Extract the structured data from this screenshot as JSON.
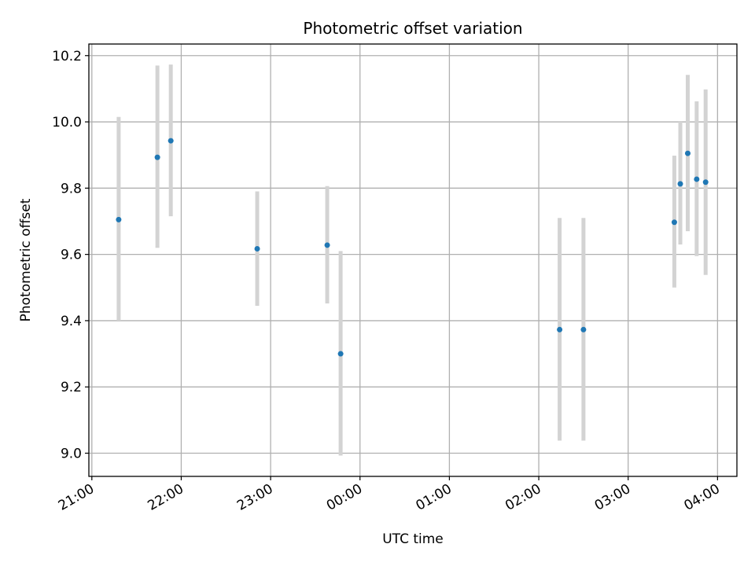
{
  "chart_data": {
    "type": "scatter",
    "title": "Photometric offset variation",
    "xlabel": "UTC time",
    "ylabel": "Photometric offset",
    "grid": true,
    "x_axis": "time",
    "xlim": [
      "20:58",
      "04:13"
    ],
    "ylim": [
      8.93,
      10.235
    ],
    "xticks": [
      "21:00",
      "22:00",
      "23:00",
      "00:00",
      "01:00",
      "02:00",
      "03:00",
      "04:00"
    ],
    "yticks": [
      "9.0",
      "9.2",
      "9.4",
      "9.6",
      "9.8",
      "10.0",
      "10.2"
    ],
    "point_color": "#1f77b4",
    "errorbar_color": "#d3d3d3",
    "points": [
      {
        "time": "21:18",
        "y": 9.705,
        "ylow": 9.4,
        "yhigh": 10.015
      },
      {
        "time": "21:44",
        "y": 9.893,
        "ylow": 9.62,
        "yhigh": 10.17
      },
      {
        "time": "21:53",
        "y": 9.943,
        "ylow": 9.715,
        "yhigh": 10.173
      },
      {
        "time": "22:51",
        "y": 9.617,
        "ylow": 9.445,
        "yhigh": 9.79
      },
      {
        "time": "23:38",
        "y": 9.628,
        "ylow": 9.452,
        "yhigh": 9.806
      },
      {
        "time": "23:47",
        "y": 9.3,
        "ylow": 8.993,
        "yhigh": 9.61
      },
      {
        "time": "02:14",
        "y": 9.373,
        "ylow": 9.038,
        "yhigh": 9.71
      },
      {
        "time": "02:30",
        "y": 9.373,
        "ylow": 9.038,
        "yhigh": 9.71
      },
      {
        "time": "03:31",
        "y": 9.697,
        "ylow": 9.5,
        "yhigh": 9.898
      },
      {
        "time": "03:35",
        "y": 9.813,
        "ylow": 9.63,
        "yhigh": 10.0
      },
      {
        "time": "03:40",
        "y": 9.905,
        "ylow": 9.67,
        "yhigh": 10.142
      },
      {
        "time": "03:46",
        "y": 9.827,
        "ylow": 9.595,
        "yhigh": 10.062
      },
      {
        "time": "03:52",
        "y": 9.818,
        "ylow": 9.538,
        "yhigh": 10.098
      }
    ]
  }
}
